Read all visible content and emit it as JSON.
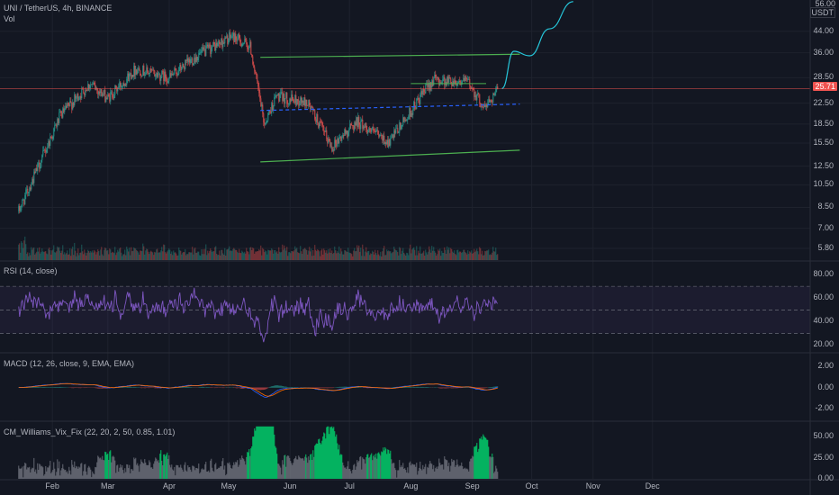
{
  "header": {
    "title": "UNI / TetherUS, 4h, BINANCE",
    "volume_label": "Vol",
    "currency_label": "USDT",
    "top_value": "56.00"
  },
  "colors": {
    "background": "#131722",
    "up": "#26a69a",
    "down": "#ef5350",
    "rsi": "#7e57c2",
    "macd": "#2962ff",
    "signal": "#ff6d00",
    "vix_green": "#00e676",
    "vix_gray": "#787b86",
    "channel": "#4caf50",
    "midline": "#2962ff",
    "projection": "#26c6da",
    "price_line": "#ef5350"
  },
  "chart_data": [
    {
      "type": "candlestick",
      "pane": "price",
      "scale": "log",
      "ylim": [
        5.2,
        56
      ],
      "yticks": [
        "44.00",
        "36.00",
        "28.50",
        "22.50",
        "18.50",
        "15.50",
        "12.50",
        "10.50",
        "8.50",
        "7.00",
        "5.80"
      ],
      "last_price": "25.71",
      "x_labels": [
        "Feb",
        "Mar",
        "Apr",
        "May",
        "Jun",
        "Jul",
        "Aug",
        "Sep",
        "Oct",
        "Nov",
        "Dec"
      ],
      "trend": [
        {
          "date": "2021-01-15",
          "close": 8.2
        },
        {
          "date": "2021-01-25",
          "close": 12.5
        },
        {
          "date": "2021-02-05",
          "close": 20.0
        },
        {
          "date": "2021-02-20",
          "close": 27.0
        },
        {
          "date": "2021-03-01",
          "close": 23.5
        },
        {
          "date": "2021-03-15",
          "close": 31.0
        },
        {
          "date": "2021-04-01",
          "close": 28.5
        },
        {
          "date": "2021-04-15",
          "close": 35.0
        },
        {
          "date": "2021-05-03",
          "close": 42.0
        },
        {
          "date": "2021-05-12",
          "close": 38.0
        },
        {
          "date": "2021-05-19",
          "close": 18.5
        },
        {
          "date": "2021-05-25",
          "close": 24.0
        },
        {
          "date": "2021-06-10",
          "close": 22.5
        },
        {
          "date": "2021-06-22",
          "close": 15.0
        },
        {
          "date": "2021-07-05",
          "close": 19.0
        },
        {
          "date": "2021-07-21",
          "close": 15.5
        },
        {
          "date": "2021-08-03",
          "close": 22.0
        },
        {
          "date": "2021-08-12",
          "close": 28.0
        },
        {
          "date": "2021-08-30",
          "close": 27.5
        },
        {
          "date": "2021-09-07",
          "close": 21.5
        },
        {
          "date": "2021-09-14",
          "close": 25.71
        }
      ],
      "channel_upper": [
        {
          "date": "2021-05-17",
          "value": 34.5
        },
        {
          "date": "2021-09-25",
          "value": 35.5
        }
      ],
      "channel_lower": [
        {
          "date": "2021-05-17",
          "value": 13.0
        },
        {
          "date": "2021-09-25",
          "value": 14.5
        }
      ],
      "channel_mid": [
        {
          "date": "2021-05-17",
          "value": 21.0
        },
        {
          "date": "2021-09-25",
          "value": 22.3
        }
      ],
      "projection": [
        {
          "date": "2021-09-16",
          "value": 25.8
        },
        {
          "date": "2021-09-22",
          "value": 36.5
        },
        {
          "date": "2021-09-30",
          "value": 35.0
        },
        {
          "date": "2021-10-10",
          "value": 45.0
        },
        {
          "date": "2021-10-22",
          "value": 58.0
        }
      ],
      "resistance": {
        "from": "2021-08-01",
        "to": "2021-09-08",
        "value": 27.0
      }
    },
    {
      "type": "bar",
      "pane": "volume",
      "label": "Vol"
    },
    {
      "type": "line",
      "pane": "rsi",
      "label": "RSI (14, close)",
      "ylim": [
        15,
        90
      ],
      "yticks": [
        "80.00",
        "60.00",
        "40.00",
        "20.00"
      ],
      "bands": [
        70,
        50,
        30
      ]
    },
    {
      "type": "line",
      "pane": "macd",
      "label": "MACD (12, 26, close, 9, EMA, EMA)",
      "ylim": [
        -3,
        3
      ],
      "yticks": [
        "2.00",
        "0.00",
        "-2.00"
      ]
    },
    {
      "type": "bar",
      "pane": "vix",
      "label": "CM_Williams_Vix_Fix (22, 20, 2, 50, 0.85, 1.01)",
      "ylim": [
        0,
        65
      ],
      "yticks": [
        "50.00",
        "25.00",
        "0.00"
      ]
    }
  ]
}
